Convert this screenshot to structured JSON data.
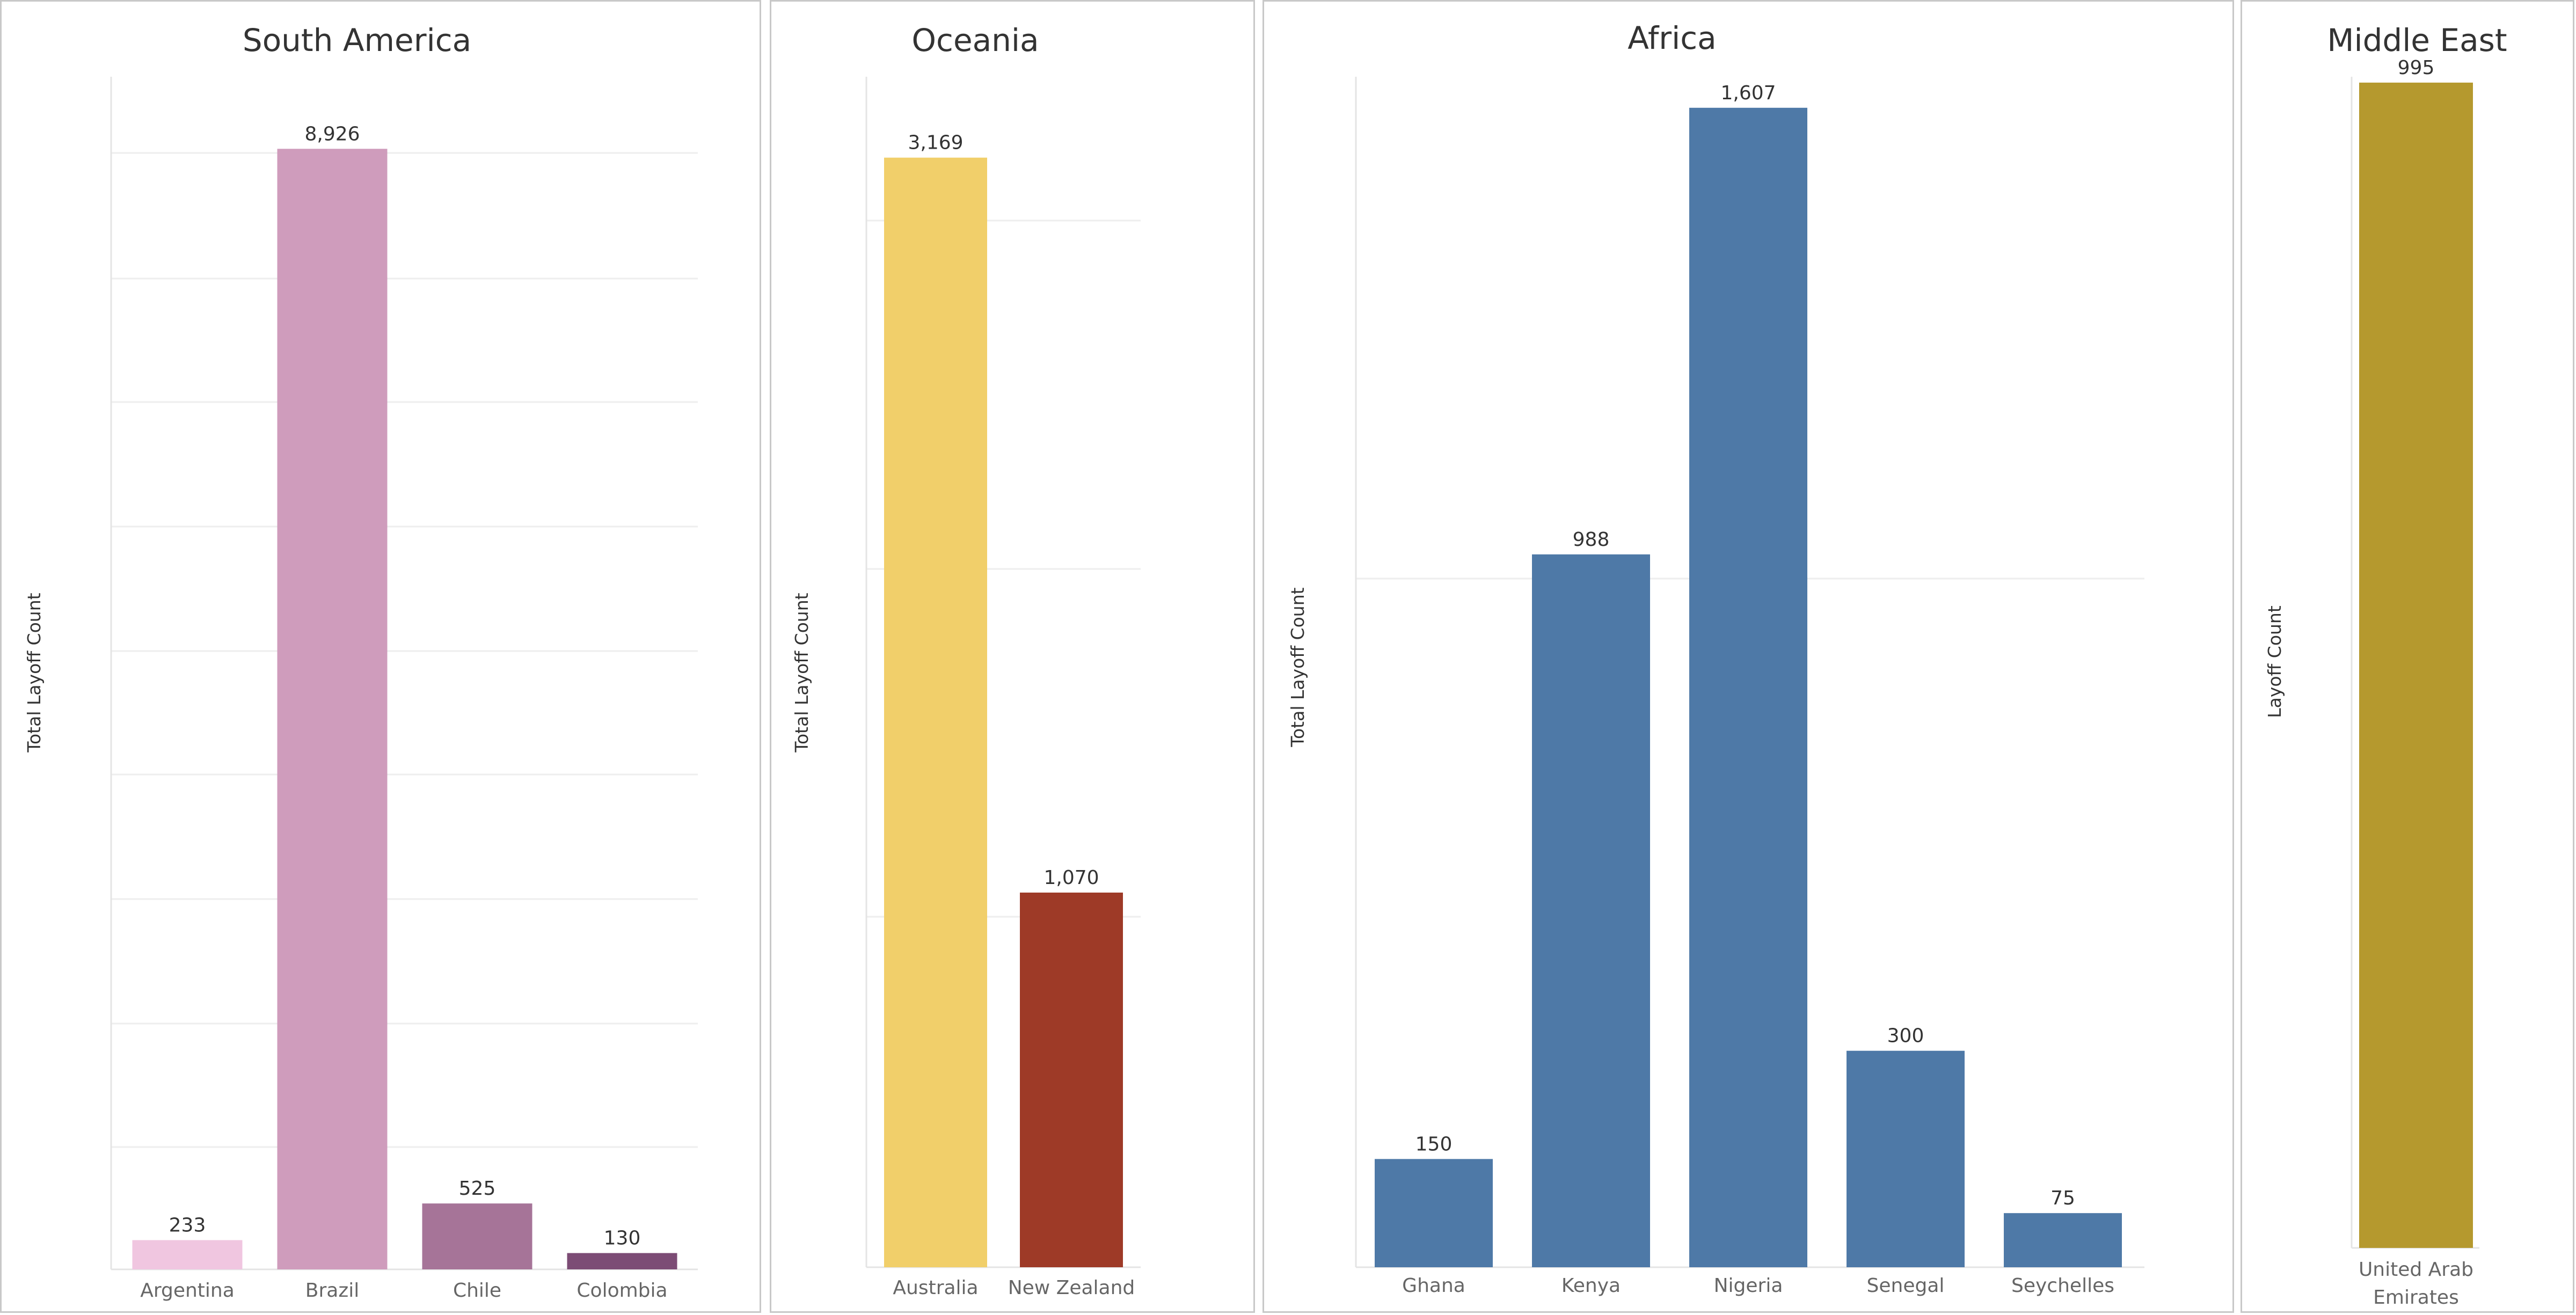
{
  "chart_data": [
    {
      "type": "bar",
      "title": "South America",
      "ylabel": "Total Layoff Count",
      "categories": [
        "Argentina",
        "Brazil",
        "Chile",
        "Colombia"
      ],
      "values": [
        233,
        8926,
        525,
        130
      ],
      "value_labels": [
        "233",
        "8,926",
        "525",
        "130"
      ],
      "colors": [
        "#f0c6e0",
        "#cf9cbc",
        "#a67498",
        "#7c4c75"
      ],
      "ylim": [
        0,
        9500
      ],
      "grid": true,
      "legend": "none"
    },
    {
      "type": "bar",
      "title": "Oceania",
      "ylabel": "Total Layoff Count",
      "categories": [
        "Australia",
        "New Zealand"
      ],
      "values": [
        3169,
        1070
      ],
      "value_labels": [
        "3,169",
        "1,070"
      ],
      "colors": [
        "#f1cf6a",
        "#9e3a27"
      ],
      "ylim": [
        0,
        3400
      ],
      "grid": true,
      "legend": "none"
    },
    {
      "type": "bar",
      "title": "Africa",
      "ylabel": "Total Layoff Count",
      "categories": [
        "Ghana",
        "Kenya",
        "Nigeria",
        "Senegal",
        "Seychelles"
      ],
      "values": [
        150,
        988,
        1607,
        300,
        75
      ],
      "value_labels": [
        "150",
        "988",
        "1,607",
        "300",
        "75"
      ],
      "colors": [
        "#4e79a7",
        "#4e79a7",
        "#4e79a7",
        "#4e79a7",
        "#4e79a7"
      ],
      "ylim": [
        0,
        1650
      ],
      "grid": true,
      "legend": "none"
    },
    {
      "type": "bar",
      "title": "Middle East",
      "ylabel": "Layoff Count",
      "categories": [
        "United Arab Emirates"
      ],
      "category_lines": [
        [
          "United Arab",
          "Emirates"
        ]
      ],
      "values": [
        995
      ],
      "value_labels": [
        "995"
      ],
      "colors": [
        "#b5992e"
      ],
      "ylim": [
        0,
        1000
      ],
      "grid": false,
      "legend": "none"
    }
  ]
}
